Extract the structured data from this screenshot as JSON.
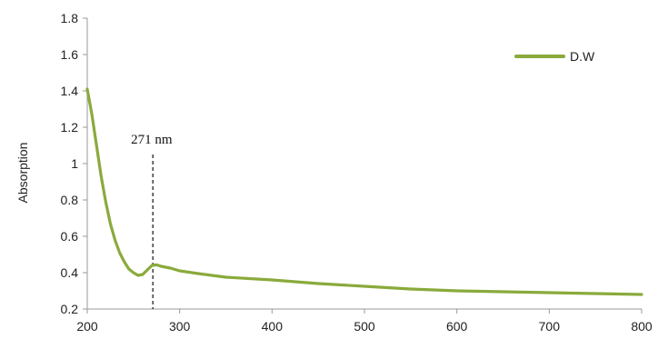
{
  "chart_data": {
    "type": "line",
    "title": "",
    "xlabel": "",
    "ylabel": "Absorption",
    "xlim": [
      200,
      800
    ],
    "ylim": [
      0.2,
      1.8
    ],
    "x_ticks": [
      "200",
      "300",
      "400",
      "500",
      "600",
      "700",
      "800"
    ],
    "y_ticks": [
      "0.2",
      "0.4",
      "0.6",
      "0.8",
      "1",
      "1.2",
      "1.4",
      "1.6",
      "1.8"
    ],
    "grid": false,
    "legend_position": "top-right",
    "series": [
      {
        "name": "D.W",
        "color": "#8aaa3c",
        "x": [
          200,
          205,
          210,
          215,
          220,
          225,
          230,
          235,
          240,
          245,
          250,
          255,
          260,
          265,
          270,
          275,
          280,
          290,
          300,
          320,
          350,
          400,
          450,
          500,
          550,
          600,
          650,
          700,
          750,
          800
        ],
        "y": [
          1.41,
          1.27,
          1.1,
          0.93,
          0.79,
          0.67,
          0.58,
          0.51,
          0.46,
          0.42,
          0.4,
          0.385,
          0.39,
          0.415,
          0.44,
          0.443,
          0.435,
          0.425,
          0.41,
          0.395,
          0.375,
          0.36,
          0.34,
          0.325,
          0.31,
          0.3,
          0.295,
          0.29,
          0.285,
          0.28
        ]
      }
    ],
    "annotations": [
      {
        "text": "271 nm",
        "x": 271,
        "style": "dashed-vertical-line"
      }
    ]
  }
}
